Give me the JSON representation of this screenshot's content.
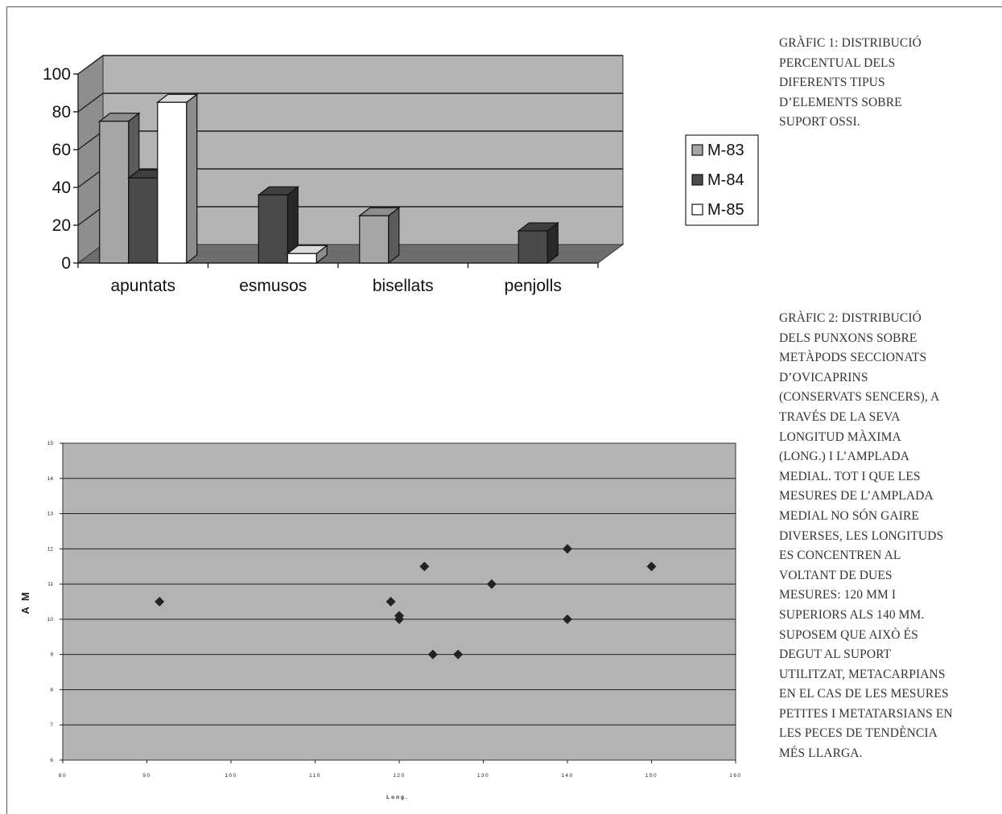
{
  "chart_data": [
    {
      "type": "bar",
      "categories": [
        "apuntats",
        "esmusos",
        "bisellats",
        "penjolls"
      ],
      "series": [
        {
          "name": "M-83",
          "values": [
            75,
            0,
            25,
            0
          ],
          "color": "#a6a6a6"
        },
        {
          "name": "M-84",
          "values": [
            45,
            36,
            0,
            17
          ],
          "color": "#4a4a4a"
        },
        {
          "name": "M-85",
          "values": [
            85,
            5,
            0,
            0
          ],
          "color": "#ffffff"
        }
      ],
      "ylim": [
        0,
        100
      ],
      "y_ticks": [
        "0",
        "20",
        "40",
        "60",
        "80",
        "100"
      ],
      "legend": "right",
      "grid": true,
      "style": "3d-bar"
    },
    {
      "type": "scatter",
      "xlabel": "Long.",
      "ylabel": "A M",
      "xlim": [
        80,
        160
      ],
      "ylim": [
        6,
        15
      ],
      "x_ticks": [
        "80",
        "90",
        "100",
        "110",
        "120",
        "130",
        "140",
        "150",
        "160"
      ],
      "y_ticks": [
        "6",
        "7",
        "8",
        "9",
        "10",
        "11",
        "12",
        "13",
        "14",
        "15"
      ],
      "points": [
        {
          "x": 91.5,
          "y": 10.5
        },
        {
          "x": 119,
          "y": 10.5
        },
        {
          "x": 120,
          "y": 10.1
        },
        {
          "x": 120,
          "y": 10
        },
        {
          "x": 123,
          "y": 11.5
        },
        {
          "x": 124,
          "y": 9
        },
        {
          "x": 127,
          "y": 9
        },
        {
          "x": 131,
          "y": 11
        },
        {
          "x": 140,
          "y": 12
        },
        {
          "x": 140,
          "y": 10
        },
        {
          "x": 150,
          "y": 11.5
        }
      ],
      "grid": true,
      "background": "#b3b3b3",
      "marker_color": "#222222"
    }
  ],
  "captions": {
    "caption1": [
      "GRÀFIC 1: DISTRIBUCIÓ",
      "PERCENTUAL DELS",
      "DIFERENTS TIPUS",
      "D’ELEMENTS SOBRE",
      "SUPORT OSSI."
    ],
    "caption2": [
      "GRÀFIC 2: DISTRIBUCIÓ",
      "DELS PUNXONS SOBRE",
      "METÀPODS SECCIONATS",
      "D’OVICAPRINS",
      "(CONSERVATS SENCERS), A",
      "TRAVÉS DE LA SEVA",
      "LONGITUD MÀXIMA",
      "(LONG.) I L’AMPLADA",
      "MEDIAL. TOT I QUE LES",
      "MESURES DE L’AMPLADA",
      "MEDIAL NO SÓN GAIRE",
      "DIVERSES, LES LONGITUDS",
      "ES CONCENTREN AL",
      "VOLTANT DE DUES",
      "MESURES: 120 MM I",
      "SUPERIORS ALS 140 MM.",
      "SUPOSEM QUE AIXÒ ÉS",
      "DEGUT AL SUPORT",
      "UTILITZAT, METACARPIANS",
      "EN EL CAS DE LES MESURES",
      "PETITES I METATARSIANS EN",
      "LES PECES DE TENDÈNCIA",
      "MÉS LLARGA."
    ]
  }
}
